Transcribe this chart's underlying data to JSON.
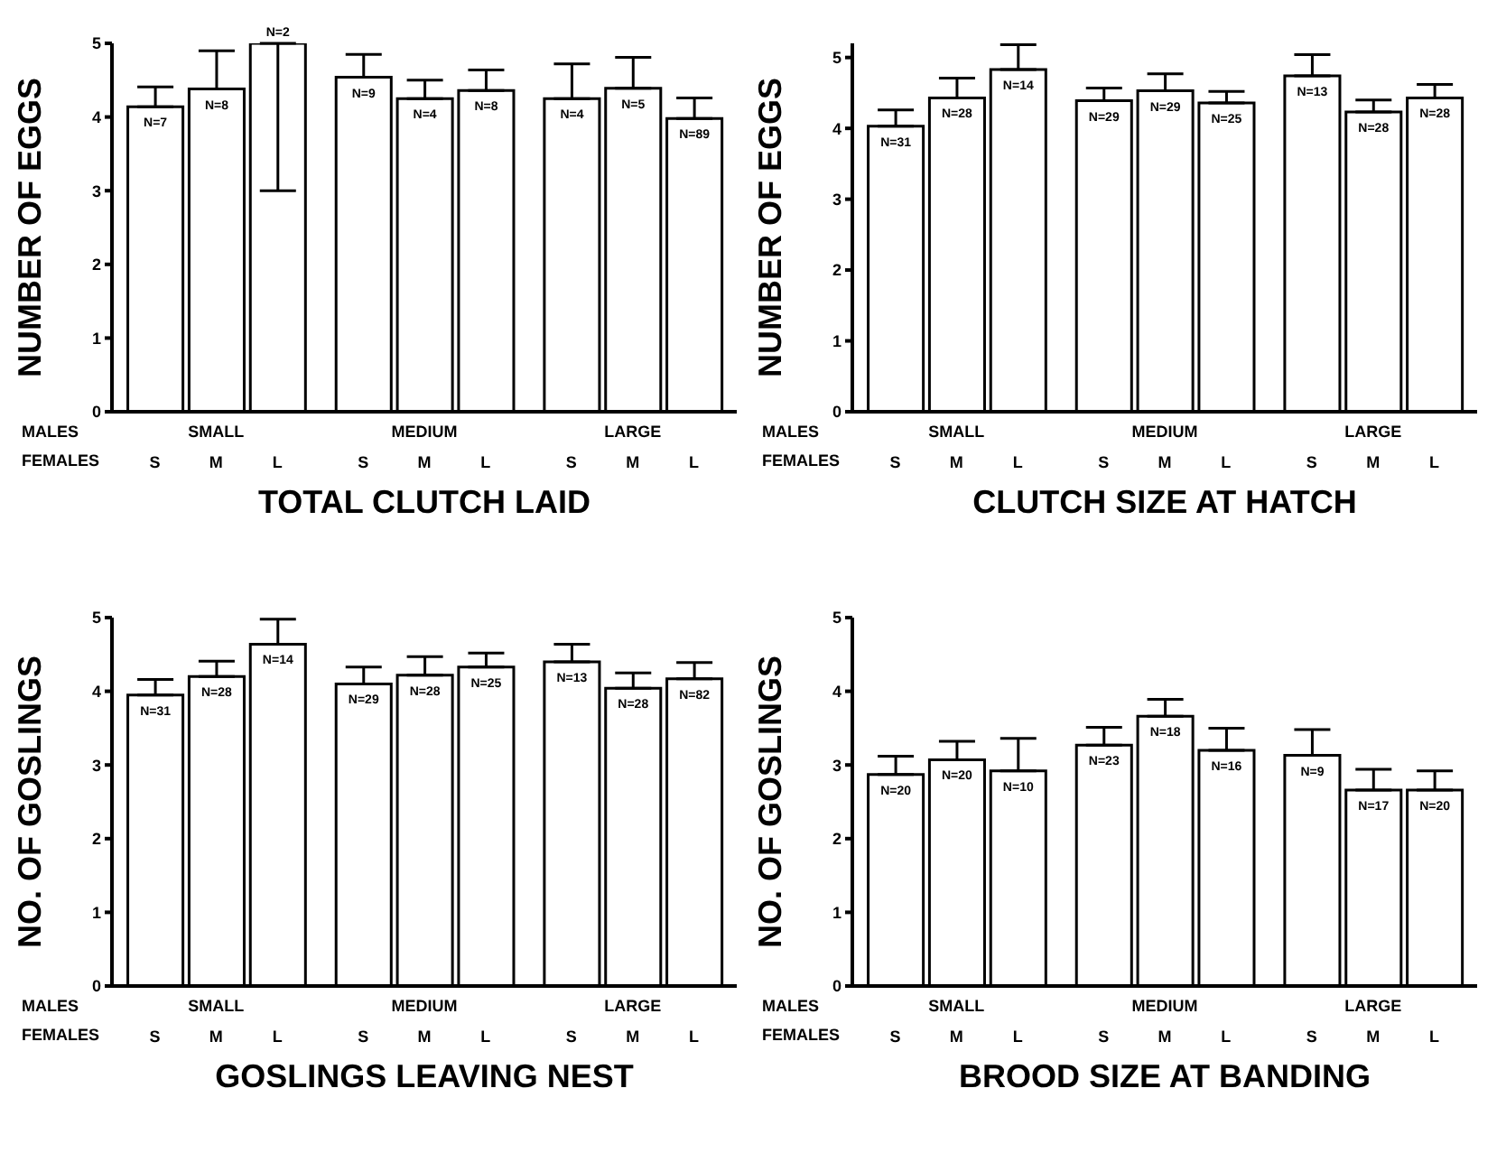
{
  "chart_data": [
    {
      "type": "bar",
      "xlabel": "TOTAL CLUTCH LAID",
      "ylabel": "NUMBER OF EGGS",
      "categories": [
        "S",
        "M",
        "L",
        "S",
        "M",
        "L",
        "S",
        "M",
        "L"
      ],
      "color": "#ffffff",
      "annotations": [
        "MALES",
        "FEMALES",
        "SMALL",
        "MEDIUM",
        "LARGE",
        "N=7",
        "N=8",
        "N=2",
        "N=9",
        "N=4",
        "N=8",
        "N=4",
        "N=5",
        "N=89"
      ],
      "values": [
        4.14,
        4.38,
        5.0,
        4.54,
        4.25,
        4.36,
        4.25,
        4.39,
        3.98
      ],
      "errors": [
        [
          4.14,
          4.41
        ],
        [
          4.38,
          4.9
        ],
        [
          3.0,
          5.0
        ],
        [
          4.54,
          4.85
        ],
        [
          4.25,
          4.5
        ],
        [
          4.36,
          4.64
        ],
        [
          4.25,
          4.72
        ],
        [
          4.39,
          4.81
        ],
        [
          3.98,
          4.26
        ]
      ],
      "ylim": [
        0,
        5
      ],
      "yticks": [
        0,
        1,
        2,
        3,
        4,
        5
      ]
    },
    {
      "type": "bar",
      "xlabel": "CLUTCH SIZE AT HATCH",
      "ylabel": "NUMBER OF EGGS",
      "categories": [
        "S",
        "M",
        "L",
        "S",
        "M",
        "L",
        "S",
        "M",
        "L"
      ],
      "color": "#ffffff",
      "annotations": [
        "MALES",
        "FEMALES",
        "SMALL",
        "MEDIUM",
        "LARGE",
        "N=31",
        "N=28",
        "N=14",
        "N=29",
        "N=29",
        "N=25",
        "N=13",
        "N=28",
        "N=28"
      ],
      "values": [
        4.03,
        4.43,
        4.83,
        4.39,
        4.53,
        4.36,
        4.74,
        4.23,
        4.43
      ],
      "errors": [
        [
          4.03,
          4.26
        ],
        [
          4.43,
          4.71
        ],
        [
          4.83,
          5.18
        ],
        [
          4.39,
          4.57
        ],
        [
          4.53,
          4.77
        ],
        [
          4.36,
          4.52
        ],
        [
          4.74,
          5.04
        ],
        [
          4.23,
          4.4
        ],
        [
          4.43,
          4.62
        ]
      ],
      "ylim": [
        0,
        5.2
      ],
      "yticks": [
        0,
        1,
        2,
        3,
        4,
        5
      ]
    },
    {
      "type": "bar",
      "xlabel": "GOSLINGS LEAVING NEST",
      "ylabel": "NO. OF GOSLINGS",
      "categories": [
        "S",
        "M",
        "L",
        "S",
        "M",
        "L",
        "S",
        "M",
        "L"
      ],
      "color": "#ffffff",
      "annotations": [
        "MALES",
        "FEMALES",
        "SMALL",
        "MEDIUM",
        "LARGE",
        "N=31",
        "N=28",
        "N=14",
        "N=29",
        "N=28",
        "N=25",
        "N=13",
        "N=28",
        "N=82"
      ],
      "values": [
        3.95,
        4.2,
        4.64,
        4.1,
        4.22,
        4.33,
        4.4,
        4.04,
        4.17
      ],
      "errors": [
        [
          3.95,
          4.16
        ],
        [
          4.2,
          4.41
        ],
        [
          4.64,
          4.98
        ],
        [
          4.1,
          4.33
        ],
        [
          4.22,
          4.47
        ],
        [
          4.33,
          4.52
        ],
        [
          4.4,
          4.64
        ],
        [
          4.04,
          4.25
        ],
        [
          4.17,
          4.39
        ]
      ],
      "ylim": [
        0,
        5
      ],
      "yticks": [
        0,
        1,
        2,
        3,
        4,
        5
      ]
    },
    {
      "type": "bar",
      "xlabel": "BROOD SIZE AT BANDING",
      "ylabel": "NO. OF GOSLINGS",
      "categories": [
        "S",
        "M",
        "L",
        "S",
        "M",
        "L",
        "S",
        "M",
        "L"
      ],
      "color": "#ffffff",
      "annotations": [
        "MALES",
        "FEMALES",
        "SMALL",
        "MEDIUM",
        "LARGE",
        "N=20",
        "N=20",
        "N=10",
        "N=23",
        "N=18",
        "N=16",
        "N=9",
        "N=17",
        "N=20"
      ],
      "values": [
        2.87,
        3.07,
        2.92,
        3.27,
        3.66,
        3.2,
        3.13,
        2.66,
        2.66
      ],
      "errors": [
        [
          2.87,
          3.12
        ],
        [
          3.07,
          3.32
        ],
        [
          2.92,
          3.36
        ],
        [
          3.27,
          3.51
        ],
        [
          3.66,
          3.89
        ],
        [
          3.2,
          3.5
        ],
        [
          3.13,
          3.48
        ],
        [
          2.66,
          2.94
        ],
        [
          2.66,
          2.92
        ]
      ],
      "ylim": [
        0,
        5
      ],
      "yticks": [
        0,
        1,
        2,
        3,
        4,
        5
      ]
    }
  ]
}
